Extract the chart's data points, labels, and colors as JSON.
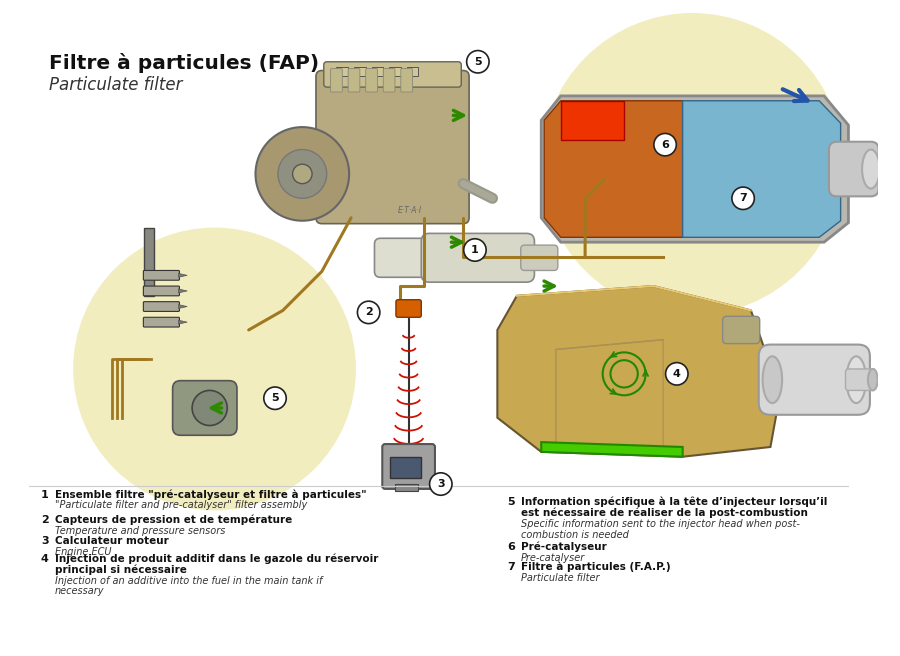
{
  "title_main": "Filtre à particules (FAP)",
  "title_sub": "Particulate filter",
  "bg_color": "#ffffff",
  "legend_left": [
    {
      "num": "1",
      "fr": "Ensemble filtre «pré-catalyseur et filtre à particules»",
      "fr2": "",
      "en": "\"Particulate filter and pre-catalyser\" filter assembly",
      "en2": ""
    },
    {
      "num": "2",
      "fr": "Capteurs de pression et de température",
      "fr2": "",
      "en": "Temperature and pressure sensors",
      "en2": ""
    },
    {
      "num": "3",
      "fr": "Calculateur moteur",
      "fr2": "",
      "en": "Engine ECU",
      "en2": ""
    },
    {
      "num": "4",
      "fr": "Injection de produit additif dans le gazole du réservoir",
      "fr2": "principal si nécessaire",
      "en": "Injection of an additive into the fuel in the main tank if",
      "en2": "necessary"
    }
  ],
  "legend_right": [
    {
      "num": "5",
      "fr": "Information spécifique à la tête d’injecteur lorsqu’il",
      "fr2": "est nécessaire de réaliser de la post-combustion",
      "en": "Specific information sent to the injector head when post-",
      "en2": "combustion is needed"
    },
    {
      "num": "6",
      "fr": "Pré-catalyseur",
      "fr2": "",
      "en": "Pre-catalyser",
      "en2": ""
    },
    {
      "num": "7",
      "fr": "Filtre à particules (F.A.P.)",
      "fr2": "",
      "en": "Particulate filter",
      "en2": ""
    }
  ],
  "circle_bg": "#f2edbe",
  "green_arrow": "#2d8a00",
  "line_brown": "#a07820",
  "line_black": "#222222",
  "red_wave": "#cc1100",
  "sensor_orange": "#d46000",
  "tank_beige": "#c8a850",
  "exhaust_gray": "#c0c0c0",
  "fap_blue": "#7ab5d0",
  "fap_orange": "#c86820",
  "badge_circle": "#ffffff"
}
